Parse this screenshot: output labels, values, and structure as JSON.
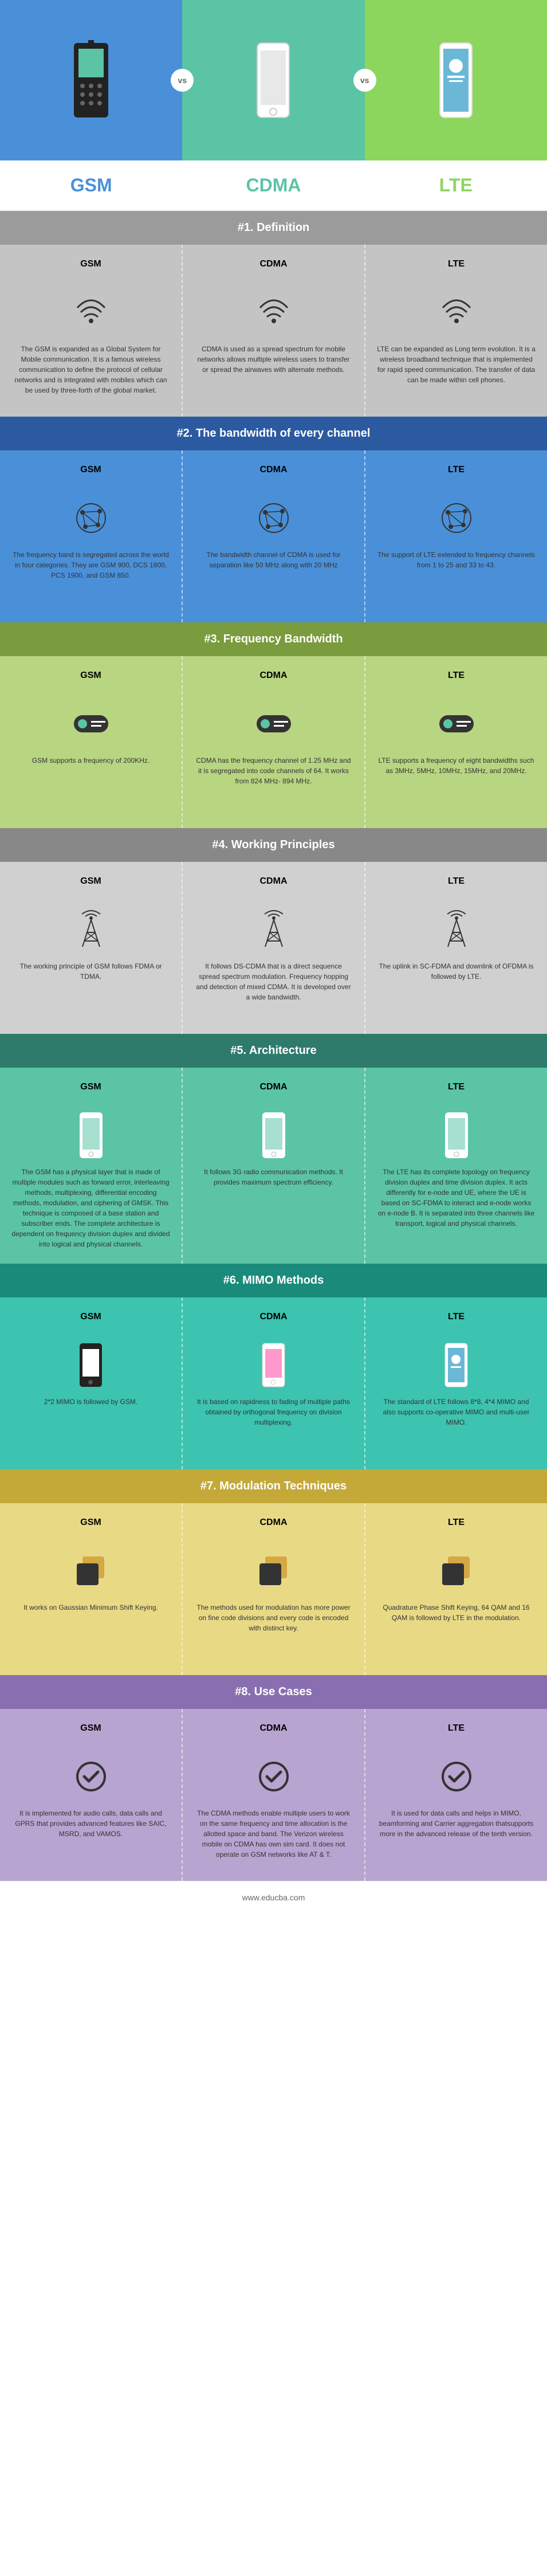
{
  "header": {
    "cols": [
      {
        "bg": "#4a90d9",
        "title_color": "#4a90d9",
        "title": "GSM",
        "icon": "phone-old"
      },
      {
        "bg": "#5bc4a5",
        "title_color": "#5bc4a5",
        "title": "CDMA",
        "icon": "phone-mid"
      },
      {
        "bg": "#8cd65e",
        "title_color": "#8cd65e",
        "title": "LTE",
        "icon": "phone-new"
      }
    ],
    "vs": "vs"
  },
  "sections": [
    {
      "header_bg": "#9b9b9b",
      "title": "#1. Definition",
      "body_bg": "#c4c4c4",
      "icon": "signal",
      "cols": [
        {
          "label": "GSM",
          "text": "The GSM is expanded as a Global System for Mobile communication. It is a famous wireless communication to define the protocol of cellular networks and is integrated with mobiles which can be used by three-forth of the global market."
        },
        {
          "label": "CDMA",
          "text": "CDMA is used as a spread spectrum for mobile networks allows multiple wireless users to transfer or spread the airwaves with alternate methods."
        },
        {
          "label": "LTE",
          "text": "LTE can be expanded as Long term evolution. It is a wireless broadband technique that is implemented for rapid speed communication. The transfer of data can be made within cell phones."
        }
      ]
    },
    {
      "header_bg": "#2c5aa0",
      "title": "#2. The bandwidth of every channel",
      "body_bg": "#4a90d9",
      "icon": "network",
      "cols": [
        {
          "label": "GSM",
          "text": "The frequency band is segregated across the world in four categories. They are GSM 900, DCS 1800, PCS 1900, and GSM 850."
        },
        {
          "label": "CDMA",
          "text": "The bandwidth channel of CDMA is used for separation like 50 MHz along with 20 MHz"
        },
        {
          "label": "LTE",
          "text": "The support of LTE extended to frequency channels from 1 to 25 and 33 to 43."
        }
      ]
    },
    {
      "header_bg": "#7a9b3e",
      "title": "#3. Frequency Bandwidth",
      "body_bg": "#b8d582",
      "icon": "badge",
      "cols": [
        {
          "label": "GSM",
          "text": "GSM supports a frequency of 200KHz."
        },
        {
          "label": "CDMA",
          "text": "CDMA has the frequency channel of 1.25 MHz and it is segregated into code channels of 64. It works from 824 MHz- 894 MHz."
        },
        {
          "label": "LTE",
          "text": "LTE supports a frequency of eight bandwidths such as 3MHz, 5MHz, 10MHz, 15MHz, and 20MHz."
        }
      ]
    },
    {
      "header_bg": "#888",
      "title": "#4. Working Principles",
      "body_bg": "#d0d0d0",
      "icon": "tower",
      "cols": [
        {
          "label": "GSM",
          "text": "The working principle of GSM follows FDMA or TDMA."
        },
        {
          "label": "CDMA",
          "text": "It follows DS-CDMA that is a direct sequence spread spectrum modulation. Frequency hopping and detection of mixed CDMA. It is developed over a wide bandwidth."
        },
        {
          "label": "LTE",
          "text": "The uplink in SC-FDMA and downlink of OFDMA is followed by LTE."
        }
      ]
    },
    {
      "header_bg": "#2e7a6b",
      "title": "#5. Architecture",
      "body_bg": "#5bc4a5",
      "icon": "phone-white",
      "cols": [
        {
          "label": "GSM",
          "text": "The GSM has a physical layer that is made of multiple modules such as forward error, interleaving methods, multiplexing, differential encoding methods, modulation, and ciphering of GMSK. This technique is composed of a base station and subscriber ends. The complete architecture is dependent on frequency division duplex and divided into logical and physical channels."
        },
        {
          "label": "CDMA",
          "text": "It follows 3G radio communication methods. It provides maximum spectrum efficiency."
        },
        {
          "label": "LTE",
          "text": "The LTE has its complete topology on frequency division duplex and time division duplex. It acts differently for e-node and UE, where the UE is based on SC-FDMA to interact and e-node works on e-node B. It is separated into three channels like transport, logical and physical channels."
        }
      ]
    },
    {
      "header_bg": "#1a8b7a",
      "title": "#6. MIMO Methods",
      "body_bg": "#3cc4b0",
      "icon": "device",
      "cols": [
        {
          "label": "GSM",
          "text": "2*2 MIMO is followed by GSM."
        },
        {
          "label": "CDMA",
          "text": "It is based on rapidness to fading of multiple paths obtained by orthogonal frequency on division multiplexing."
        },
        {
          "label": "LTE",
          "text": "The standard of LTE follows 8*8, 4*4 MIMO and also supports co-operative MIMO and multi-user MIMO."
        }
      ]
    },
    {
      "header_bg": "#c4a939",
      "title": "#7. Modulation Techniques",
      "body_bg": "#e8d985",
      "icon": "cards",
      "cols": [
        {
          "label": "GSM",
          "text": "It works on Gaussian Minimum Shift Keying."
        },
        {
          "label": "CDMA",
          "text": "The methods used for modulation has more power on fine code divisions and every code is encoded with distinct key."
        },
        {
          "label": "LTE",
          "text": "Quadrature Phase Shift Keying, 64 QAM and 16 QAM is followed by LTE in the modulation."
        }
      ]
    },
    {
      "header_bg": "#8a6fb0",
      "title": "#8. Use Cases",
      "body_bg": "#b8a4d0",
      "icon": "check",
      "cols": [
        {
          "label": "GSM",
          "text": "It is implemented for audio calls, data calls and GPRS that provides advanced features like SAIC, MSRD, and VAMOS."
        },
        {
          "label": "CDMA",
          "text": "The CDMA methods enable multiple users to work on the same frequency and time allocation is the allotted space and band. The Verizon wireless mobile on CDMA has own sim card. It does not operate on GSM networks like AT & T."
        },
        {
          "label": "LTE",
          "text": "It is used for data calls and helps in MIMO, beamforming and Carrier aggregation thatsupports more in the advanced release of the tenth version."
        }
      ]
    }
  ],
  "footer": "www.educba.com"
}
